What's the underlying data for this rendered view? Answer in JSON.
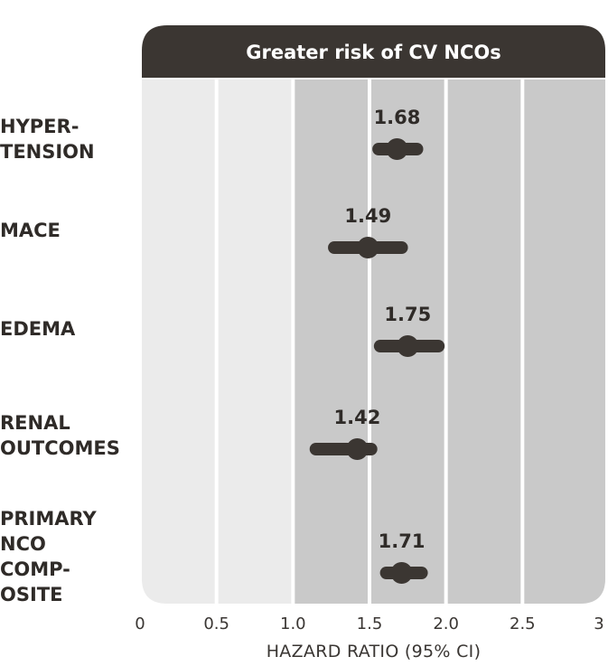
{
  "chart_data": {
    "type": "forest",
    "header": "Greater risk of CV NCOs",
    "xlabel": "HAZARD RATIO (95% CI)",
    "xlim": [
      0,
      3
    ],
    "xticks": [
      {
        "value": 0,
        "label": "0"
      },
      {
        "value": 0.5,
        "label": "0.5"
      },
      {
        "value": 1.0,
        "label": "1.0"
      },
      {
        "value": 1.5,
        "label": "1.5"
      },
      {
        "value": 2.0,
        "label": "2.0"
      },
      {
        "value": 2.5,
        "label": "2.5"
      },
      {
        "value": 3,
        "label": "3"
      }
    ],
    "shaded_region": [
      1.0,
      3
    ],
    "rows": [
      {
        "label_lines": [
          "HYPER-",
          "TENSION"
        ],
        "value": 1.68,
        "value_label": "1.68",
        "ci_low": 1.56,
        "ci_high": 1.81
      },
      {
        "label_lines": [
          "MACE"
        ],
        "value": 1.49,
        "value_label": "1.49",
        "ci_low": 1.27,
        "ci_high": 1.71
      },
      {
        "label_lines": [
          "EDEMA"
        ],
        "value": 1.75,
        "value_label": "1.75",
        "ci_low": 1.57,
        "ci_high": 1.95
      },
      {
        "label_lines": [
          "RENAL",
          "OUTCOMES"
        ],
        "value": 1.42,
        "value_label": "1.42",
        "ci_low": 1.15,
        "ci_high": 1.51
      },
      {
        "label_lines": [
          "PRIMARY",
          "NCO",
          "COMP-",
          "OSITE"
        ],
        "value": 1.71,
        "value_label": "1.71",
        "ci_low": 1.61,
        "ci_high": 1.84
      }
    ]
  },
  "colors": {
    "header_bg": "#3b3632",
    "panel_light": "#ebebeb",
    "panel_dark": "#c9c9c9",
    "mark": "#3b3632",
    "text": "#2f2b28",
    "gridline": "#ffffff"
  }
}
